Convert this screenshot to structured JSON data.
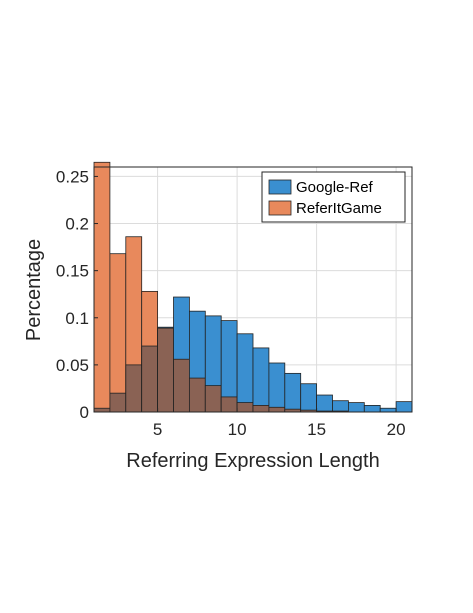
{
  "chart_data": {
    "type": "bar",
    "subtype": "overlapping-histogram",
    "title": "",
    "xlabel": "Referring Expression Length",
    "ylabel": "Percentage",
    "xlim": [
      1,
      21
    ],
    "ylim": [
      0,
      0.26
    ],
    "xticks": [
      5,
      10,
      15,
      20
    ],
    "yticks": [
      0,
      0.05,
      0.1,
      0.15,
      0.2,
      0.25
    ],
    "xtick_labels": [
      "5",
      "10",
      "15",
      "20"
    ],
    "ytick_labels": [
      "0",
      "0.05",
      "0.1",
      "0.15",
      "0.2",
      "0.25"
    ],
    "grid": true,
    "legend_position": "top-right",
    "bin_starts": [
      1,
      2,
      3,
      4,
      5,
      6,
      7,
      8,
      9,
      10,
      11,
      12,
      13,
      14,
      15,
      16,
      17,
      18,
      19,
      20
    ],
    "bin_width": 1,
    "series": [
      {
        "name": "Google-Ref",
        "color": "#3a8fd0",
        "values": [
          0.004,
          0.02,
          0.05,
          0.07,
          0.09,
          0.122,
          0.107,
          0.102,
          0.097,
          0.083,
          0.068,
          0.052,
          0.041,
          0.03,
          0.018,
          0.012,
          0.01,
          0.007,
          0.004,
          0.011
        ]
      },
      {
        "name": "ReferItGame",
        "color": "#e8895c",
        "values": [
          0.265,
          0.168,
          0.186,
          0.128,
          0.089,
          0.056,
          0.036,
          0.028,
          0.016,
          0.01,
          0.007,
          0.005,
          0.003,
          0.002,
          0.001,
          0.001,
          0.0,
          0.0,
          0.0,
          0.0
        ]
      }
    ],
    "colors": {
      "overlap": "#8a6254",
      "grid": "#dcdcdc",
      "axis": "#262626"
    }
  }
}
